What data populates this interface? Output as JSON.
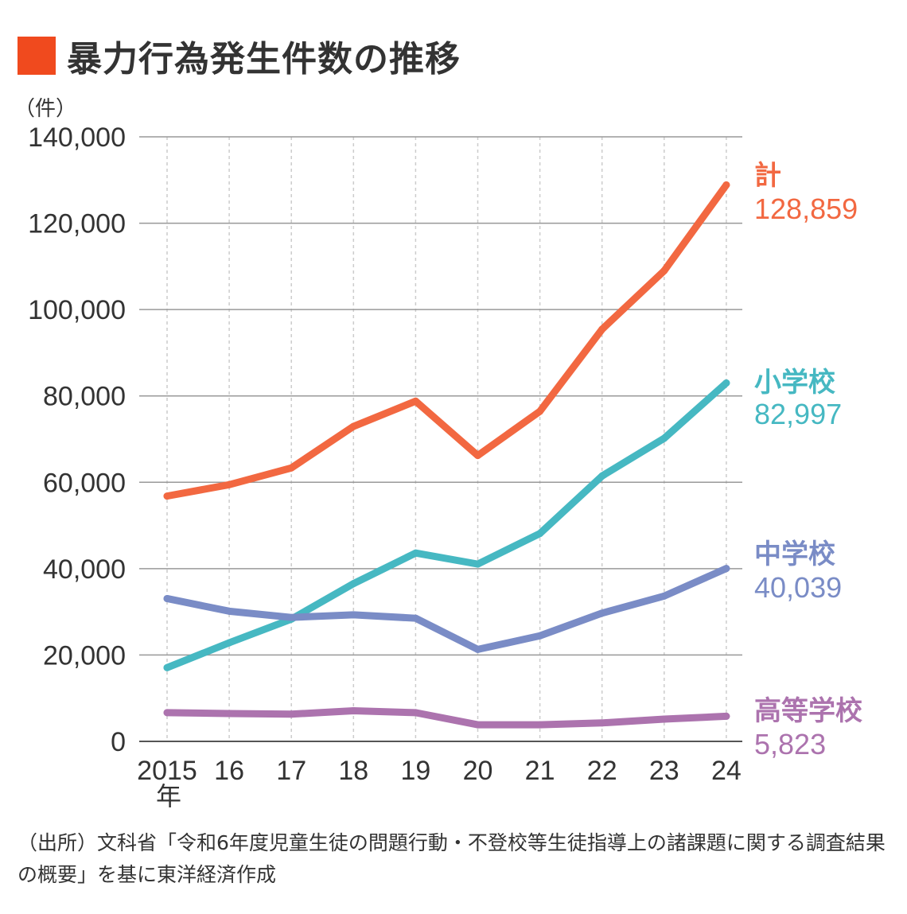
{
  "title": "暴力行為発生件数の推移",
  "title_marker_color": "#F04A1E",
  "source": "（出所）文科省「令和6年度児童生徒の問題行動・不登校等生徒指導上の諸課題に関する調査結果の概要」を基に東洋経済作成",
  "chart_data": {
    "type": "line",
    "title": "暴力行為発生件数の推移",
    "ylabel": "（件）",
    "xlabel": "",
    "x": [
      "2015",
      "16",
      "17",
      "18",
      "19",
      "20",
      "21",
      "22",
      "23",
      "24"
    ],
    "x_unit_label": "年",
    "ylim": [
      0,
      140000
    ],
    "yticks": [
      0,
      20000,
      40000,
      60000,
      80000,
      100000,
      120000,
      140000
    ],
    "ytick_labels": [
      "0",
      "20,000",
      "40,000",
      "60,000",
      "80,000",
      "100,000",
      "120,000",
      "140,000"
    ],
    "grid": "horizontal solid, vertical dashed",
    "legend": "right, labels at line ends",
    "series": [
      {
        "name": "計",
        "end_label": "128,859",
        "color": "#F26841",
        "values": [
          56806,
          59444,
          63325,
          72940,
          78787,
          66201,
          76441,
          95426,
          108987,
          128859
        ]
      },
      {
        "name": "小学校",
        "end_label": "82,997",
        "color": "#46B8C2",
        "values": [
          17078,
          22841,
          28315,
          36536,
          43614,
          41056,
          48138,
          61455,
          70178,
          82997
        ]
      },
      {
        "name": "中学校",
        "end_label": "40,039",
        "color": "#7A8CC6",
        "values": [
          33073,
          30148,
          28702,
          29320,
          28518,
          21293,
          24450,
          29699,
          33653,
          40039
        ]
      },
      {
        "name": "高等学校",
        "end_label": "5,823",
        "color": "#AC73AE",
        "values": [
          6655,
          6455,
          6308,
          7084,
          6655,
          3852,
          3853,
          4272,
          5155,
          5823
        ]
      }
    ]
  }
}
